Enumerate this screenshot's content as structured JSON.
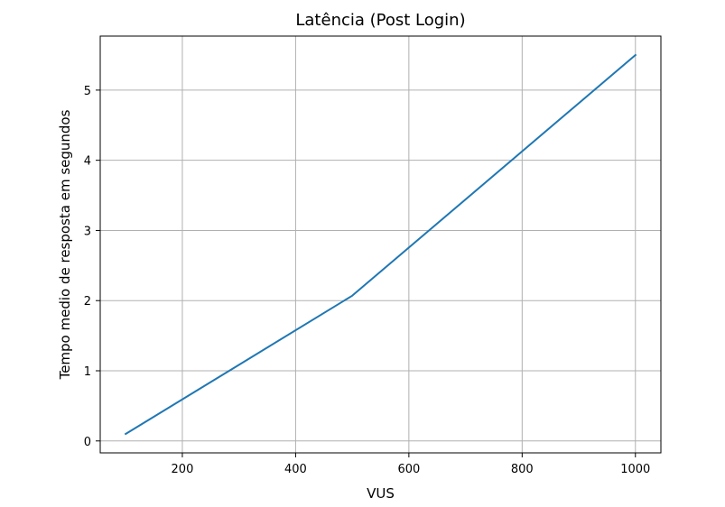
{
  "chart_data": {
    "type": "line",
    "title": "Latência (Post Login)",
    "xlabel": "VUS",
    "ylabel": "Tempo medio de resposta em segundos",
    "xlim": [
      55,
      1045
    ],
    "ylim": [
      -0.17,
      5.77
    ],
    "xticks": [
      200,
      400,
      600,
      800,
      1000
    ],
    "yticks": [
      0,
      1,
      2,
      3,
      4,
      5
    ],
    "grid": true,
    "series": [
      {
        "color": "#1f77b4",
        "x": [
          100,
          500,
          1000
        ],
        "y": [
          0.1,
          2.07,
          5.5
        ]
      }
    ]
  }
}
